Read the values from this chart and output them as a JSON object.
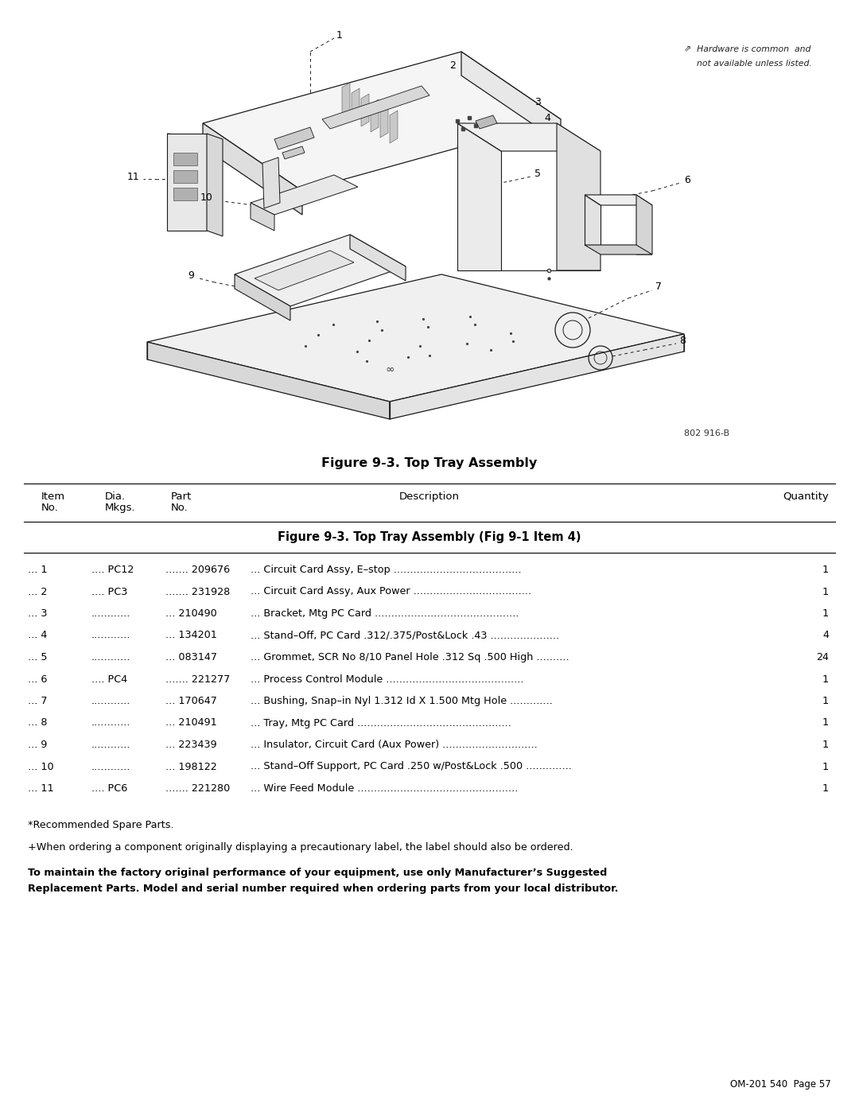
{
  "page_width": 10.8,
  "page_height": 13.97,
  "dpi": 100,
  "background_color": "#ffffff",
  "figure_caption": "Figure 9-3. Top Tray Assembly",
  "figure_number_code": "802 916-B",
  "hardware_note_line1": "Hardware is common  and",
  "hardware_note_line2": "not available unless listed.",
  "table_header_section": "Figure 9-3. Top Tray Assembly (Fig 9-1 Item 4)",
  "parts": [
    {
      "item": "... 1",
      "dia": ".... PC12",
      "part": "....... 209676",
      "desc": "Circuit Card Assy, E–stop",
      "dots_after_desc": " .......................................",
      "qty": "1"
    },
    {
      "item": "... 2",
      "dia": ".... PC3",
      "part": "....... 231928",
      "desc": "Circuit Card Assy, Aux Power",
      "dots_after_desc": " ....................................",
      "qty": "1"
    },
    {
      "item": "... 3",
      "dia": "............",
      "part": "... 210490",
      "desc": "Bracket, Mtg PC Card",
      "dots_after_desc": " ............................................",
      "qty": "1"
    },
    {
      "item": "... 4",
      "dia": "............",
      "part": "... 134201",
      "desc": "Stand–Off, PC Card .312/.375/Post&Lock .43",
      "dots_after_desc": " .....................",
      "qty": "4"
    },
    {
      "item": "... 5",
      "dia": "............",
      "part": "... 083147",
      "desc": "Grommet, SCR No 8/10 Panel Hole .312 Sq .500 High",
      "dots_after_desc": " ..........",
      "qty": "24"
    },
    {
      "item": "... 6",
      "dia": ".... PC4",
      "part": "....... 221277",
      "desc": "Process Control Module",
      "dots_after_desc": " ..........................................",
      "qty": "1"
    },
    {
      "item": "... 7",
      "dia": "............",
      "part": "... 170647",
      "desc": "Bushing, Snap–in Nyl 1.312 Id X 1.500 Mtg Hole",
      "dots_after_desc": " .............",
      "qty": "1"
    },
    {
      "item": "... 8",
      "dia": "............",
      "part": "... 210491",
      "desc": "Tray, Mtg PC Card",
      "dots_after_desc": " ...............................................",
      "qty": "1"
    },
    {
      "item": "... 9",
      "dia": "............",
      "part": "... 223439",
      "desc": "Insulator, Circuit Card (Aux Power)",
      "dots_after_desc": " .............................",
      "qty": "1"
    },
    {
      "item": "... 10",
      "dia": "............",
      "part": "... 198122",
      "desc": "Stand–Off Support, PC Card .250 w/Post&Lock .500",
      "dots_after_desc": " ..............",
      "qty": "1"
    },
    {
      "item": "... 11",
      "dia": ".... PC6",
      "part": "....... 221280",
      "desc": "Wire Feed Module",
      "dots_after_desc": " .................................................",
      "qty": "1"
    }
  ],
  "footnote1": "*Recommended Spare Parts.",
  "footnote2": "+When ordering a component originally displaying a precautionary label, the label should also be ordered.",
  "footnote3": "To maintain the factory original performance of your equipment, use only Manufacturer’s Suggested Replacement Parts. Model and serial number required when ordering parts from your local distributor.",
  "page_id": "OM-201 540  Page 57"
}
